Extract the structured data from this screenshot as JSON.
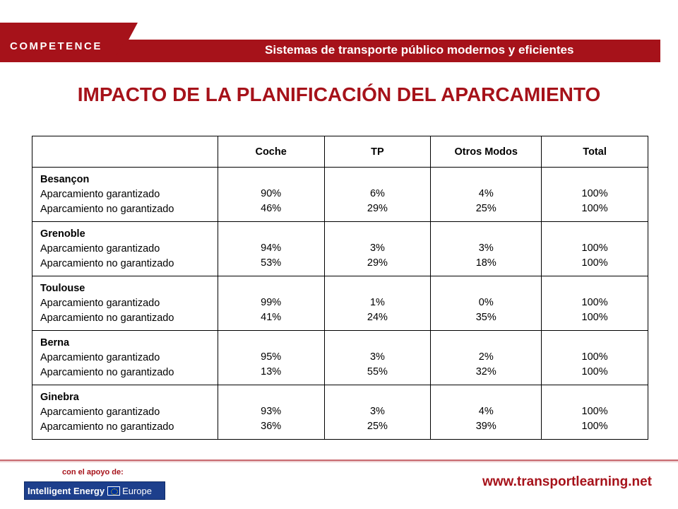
{
  "header": {
    "logo": "COMPETENCE",
    "tagline": "Sistemas de transporte público modernos y eficientes",
    "brand_color": "#a6121a"
  },
  "title": "IMPACTO DE LA PLANIFICACIÓN DEL APARCAMIENTO",
  "table": {
    "columns": [
      "",
      "Coche",
      "TP",
      "Otros Modos",
      "Total"
    ],
    "row_labels": [
      "Aparcamiento garantizado",
      "Aparcamiento no garantizado"
    ],
    "cities": [
      {
        "name": "Besançon",
        "coche": [
          "90%",
          "46%"
        ],
        "tp": [
          "6%",
          "29%"
        ],
        "otros": [
          "4%",
          "25%"
        ],
        "total": [
          "100%",
          "100%"
        ]
      },
      {
        "name": "Grenoble",
        "coche": [
          "94%",
          "53%"
        ],
        "tp": [
          "3%",
          "29%"
        ],
        "otros": [
          "3%",
          "18%"
        ],
        "total": [
          "100%",
          "100%"
        ]
      },
      {
        "name": "Toulouse",
        "coche": [
          "99%",
          "41%"
        ],
        "tp": [
          "1%",
          "24%"
        ],
        "otros": [
          "0%",
          "35%"
        ],
        "total": [
          "100%",
          "100%"
        ]
      },
      {
        "name": "Berna",
        "coche": [
          "95%",
          "13%"
        ],
        "tp": [
          "3%",
          "55%"
        ],
        "otros": [
          "2%",
          "32%"
        ],
        "total": [
          "100%",
          "100%"
        ]
      },
      {
        "name": "Ginebra",
        "coche": [
          "93%",
          "36%"
        ],
        "tp": [
          "3%",
          "25%"
        ],
        "otros": [
          "4%",
          "39%"
        ],
        "total": [
          "100%",
          "100%"
        ]
      }
    ]
  },
  "footer": {
    "support_text": "con el apoyo de:",
    "program_logo": "Intelligent Energy",
    "program_logo_suffix": "Europe",
    "website": "www.transportlearning.net"
  }
}
